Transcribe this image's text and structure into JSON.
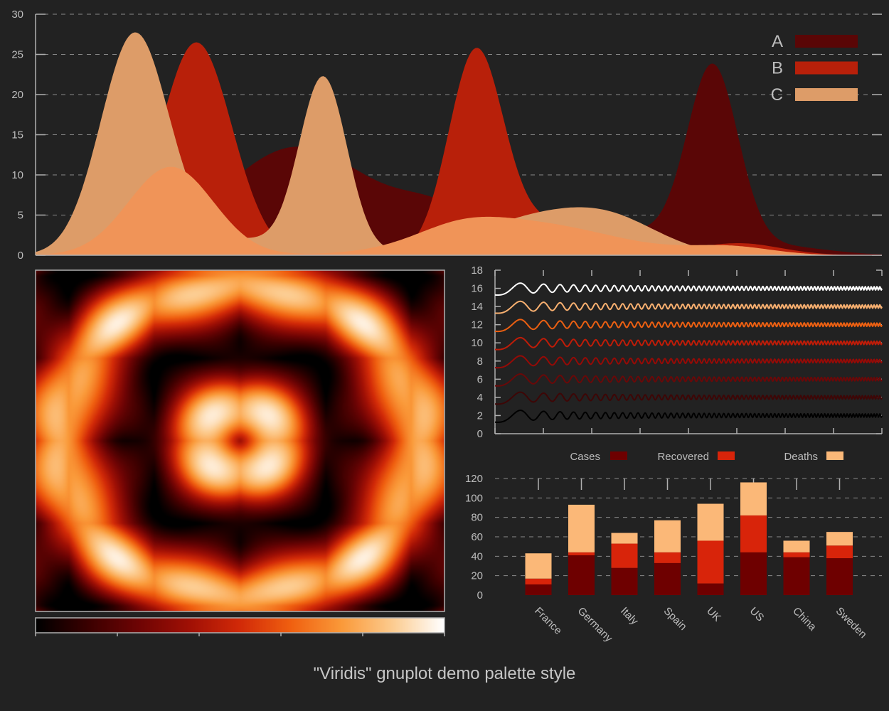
{
  "caption": "\"Viridis\" gnuplot demo palette style",
  "colors": {
    "background": "#222222",
    "axis": "#b0b0b0",
    "grid": "#8a8a8a",
    "palette": [
      "#000000",
      "#3a0000",
      "#6e0404",
      "#a01005",
      "#d22a08",
      "#f06010",
      "#fa9a3a",
      "#fccc90",
      "#ffffff"
    ]
  },
  "chart_data": [
    {
      "type": "area",
      "x_range": [
        0,
        1
      ],
      "ylim": [
        0,
        30
      ],
      "yticks": [
        0,
        5,
        10,
        15,
        20,
        25,
        30
      ],
      "grid": true,
      "legend_position": "top-right",
      "series": [
        {
          "name": "A",
          "color": "#5a0606",
          "peaks": [
            [
              0.31,
              13.5,
              0.09
            ],
            [
              0.48,
              4.5,
              0.05
            ],
            [
              0.7,
              3,
              0.06
            ],
            [
              0.8,
              22.5,
              0.03
            ],
            [
              0.87,
              1.2,
              0.06
            ]
          ]
        },
        {
          "name": "B",
          "color": "#b8200a",
          "peaks": [
            [
              0.19,
              26.5,
              0.042
            ],
            [
              0.52,
              24.5,
              0.032
            ],
            [
              0.61,
              4,
              0.06
            ],
            [
              0.83,
              1.5,
              0.05
            ]
          ]
        },
        {
          "name": "C",
          "color": "#dd9c68",
          "peaks": [
            [
              0.117,
              27,
              0.04
            ],
            [
              0.34,
              21.5,
              0.028
            ],
            [
              0.23,
              2,
              0.08
            ],
            [
              0.58,
              4,
              0.07
            ],
            [
              0.68,
              4,
              0.06
            ]
          ]
        },
        {
          "name": "",
          "color": "#f09458",
          "peaks": [
            [
              0.16,
              11,
              0.05
            ],
            [
              0.58,
              4,
              0.1
            ],
            [
              0.5,
              1.5,
              0.05
            ],
            [
              0.82,
              1,
              0.05
            ]
          ]
        }
      ]
    },
    {
      "type": "heatmap",
      "x_range": [
        -1,
        1
      ],
      "y_range": [
        -1,
        1
      ],
      "colorbox": "bottom",
      "colorbox_ticks": 6
    },
    {
      "type": "line",
      "x_range": [
        0,
        8
      ],
      "ylim": [
        0,
        18
      ],
      "yticks": [
        0,
        2,
        4,
        6,
        8,
        10,
        12,
        14,
        16,
        18
      ],
      "xticks_count": 9,
      "series": [
        {
          "offset": 2,
          "color": "#000000"
        },
        {
          "offset": 4,
          "color": "#3e0606"
        },
        {
          "offset": 6,
          "color": "#6a0808"
        },
        {
          "offset": 8,
          "color": "#960a06"
        },
        {
          "offset": 10,
          "color": "#c01c08"
        },
        {
          "offset": 12,
          "color": "#ec6012"
        },
        {
          "offset": 14,
          "color": "#f9b070"
        },
        {
          "offset": 16,
          "color": "#ffffff"
        }
      ]
    },
    {
      "type": "bar",
      "stacked": true,
      "categories": [
        "France",
        "Germany",
        "Italy",
        "Spain",
        "UK",
        "US",
        "China",
        "Sweden"
      ],
      "series": [
        {
          "name": "Cases",
          "color": "#6e0000",
          "values": [
            11,
            41,
            28,
            33,
            12,
            44,
            39,
            38
          ]
        },
        {
          "name": "Recovered",
          "color": "#d8240a",
          "values": [
            6,
            3,
            25,
            11,
            44,
            38,
            5,
            13
          ]
        },
        {
          "name": "Deaths",
          "color": "#fbb878",
          "values": [
            26,
            49,
            11,
            33,
            38,
            34,
            12,
            14
          ]
        }
      ],
      "ylim": [
        0,
        120
      ],
      "yticks": [
        0,
        20,
        40,
        60,
        80,
        100,
        120
      ],
      "legend_position": "top"
    }
  ]
}
